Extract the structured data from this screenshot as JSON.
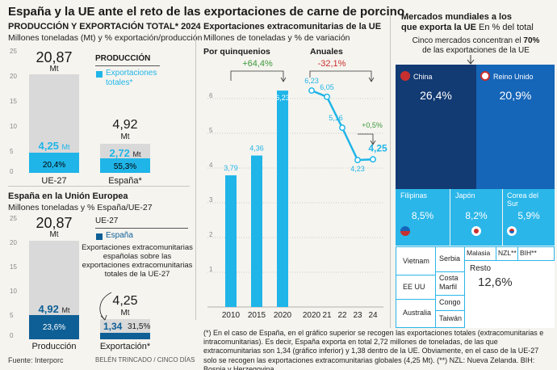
{
  "title": "España y la UE ante el reto de las exportaciones de carne de porcino",
  "production": {
    "heading": "PRODUCCIÓN Y EXPORTACIÓN TOTAL* 2024",
    "sub": "Millones toneladas (Mt) y % exportación/producción",
    "legend_title": "PRODUCCIÓN",
    "legend_item": "Exportaciones totales*",
    "yticks": [
      "25",
      "20",
      "15",
      "10",
      "5",
      "0"
    ],
    "ue_total": "20,87",
    "ue_total_unit": "Mt",
    "ue_export": "4,25",
    "ue_export_unit": "Mt",
    "ue_pct": "20,4%",
    "ue_label": "UE-27",
    "es_total": "4,92",
    "es_total_unit": "Mt",
    "es_export": "2,72",
    "es_export_unit": "Mt",
    "es_pct": "55,3%",
    "es_label": "España*"
  },
  "spain_eu": {
    "heading": "España en la Unión Europea",
    "sub": "Millones toneladas y % España/UE-27",
    "legend_title": "UE-27",
    "legend_item": "España",
    "legend_note": "Exportaciones extracomunitarias españolas sobre las exportaciones extracomunitarias totales de la UE-27",
    "yticks": [
      "25",
      "20",
      "15",
      "10",
      "5",
      "0"
    ],
    "prod_total": "20,87",
    "prod_unit": "Mt",
    "prod_es": "4,92",
    "prod_es_unit": "Mt",
    "prod_pct": "23,6%",
    "prod_label": "Producción",
    "exp_total": "4,25",
    "exp_unit": "Mt",
    "exp_es": "1,34",
    "exp_pct": "31,5%",
    "exp_label": "Exportación*"
  },
  "extra": {
    "heading": "Exportaciones extracomunitarias de la UE",
    "sub": "Millones de toneladas y % de variación",
    "quin_title": "Por quinquenios",
    "quin_change": "+64,4%",
    "annual_title": "Anuales",
    "annual_change": "-32,1%",
    "annual_last_change": "+0,5%",
    "yticks": [
      "6",
      "5",
      "4",
      "3",
      "2",
      "1"
    ]
  },
  "markets": {
    "heading_1": "Mercados mundiales a los",
    "heading_2": "que exporta la UE",
    "heading_pct": "En % del total",
    "sub_1": "Cinco mercados concentran el",
    "sub_pct": "70%",
    "sub_2": "de las exportaciones de la UE",
    "china": "China",
    "china_pct": "26,4%",
    "uk": "Reino Unido",
    "uk_pct": "20,9%",
    "ph": "Filipinas",
    "ph_pct": "8,5%",
    "jp": "Japón",
    "jp_pct": "8,2%",
    "kr": "Corea del Sur",
    "kr_pct": "5,9%",
    "vn": "Vietnam",
    "us": "EE UU",
    "au": "Australia",
    "rs": "Serbia",
    "ci": "Costa Marfil",
    "cg": "Congo",
    "tw": "Taiwán",
    "my": "Malasia",
    "nz": "NZL**",
    "ba": "BIH**",
    "rest": "Resto",
    "rest_pct": "12,6%"
  },
  "footnote": "(*) En el caso de España, en el gráfico superior se recogen las exportaciones totales (extracomunitarias e intracomunitarias). Es decir, España exporta en total 2,72 millones de toneladas, de las que extracomunitarias son 1,34 (gráfico inferior) y 1,38 dentro de la UE. Obviamente, en el caso de la UE-27 solo se recogen las exportaciones extracomunitarias globales (4,25 Mt). (**) NZL: Nueva Zelanda. BIH: Bosnia y Herzegovina.",
  "source": "Fuente: Interporc",
  "credit": "BELÉN TRINCADO / CINCO DÍAS",
  "colors": {
    "light_blue": "#1fb5e8",
    "dark_blue": "#0e5f96",
    "navy": "#123a73",
    "royal": "#1565b8",
    "cyan": "#2ab6e9",
    "grey": "#d9d9d9",
    "green": "#3c9a3c",
    "red": "#c8302f"
  },
  "chart_data": [
    {
      "type": "bar",
      "title": "PRODUCCIÓN Y EXPORTACIÓN TOTAL* 2024",
      "categories": [
        "UE-27",
        "España*"
      ],
      "series": [
        {
          "name": "Producción",
          "values": [
            20.87,
            4.92
          ]
        },
        {
          "name": "Exportaciones totales*",
          "values": [
            4.25,
            2.72
          ]
        }
      ],
      "ylabel": "Millones toneladas (Mt)",
      "ylim": [
        0,
        25
      ]
    },
    {
      "type": "bar",
      "title": "España en la Unión Europea",
      "categories": [
        "Producción",
        "Exportación*"
      ],
      "series": [
        {
          "name": "UE-27",
          "values": [
            20.87,
            4.25
          ]
        },
        {
          "name": "España",
          "values": [
            4.92,
            1.34
          ]
        }
      ],
      "ylim": [
        0,
        25
      ]
    },
    {
      "type": "bar",
      "title": "Por quinquenios",
      "categories": [
        "2010",
        "2015",
        "2020"
      ],
      "values": [
        3.79,
        4.36,
        6.23
      ],
      "labels": [
        "3,79",
        "4,36",
        "6,23"
      ],
      "ylim": [
        0,
        6.5
      ]
    },
    {
      "type": "line",
      "title": "Anuales",
      "x": [
        "2020",
        "21",
        "22",
        "23",
        "24"
      ],
      "values": [
        6.23,
        6.05,
        5.16,
        4.23,
        4.25
      ],
      "labels": [
        "6,23",
        "6,05",
        "5,16",
        "4,23",
        "4,25"
      ],
      "ylim": [
        0,
        6.5
      ]
    }
  ]
}
